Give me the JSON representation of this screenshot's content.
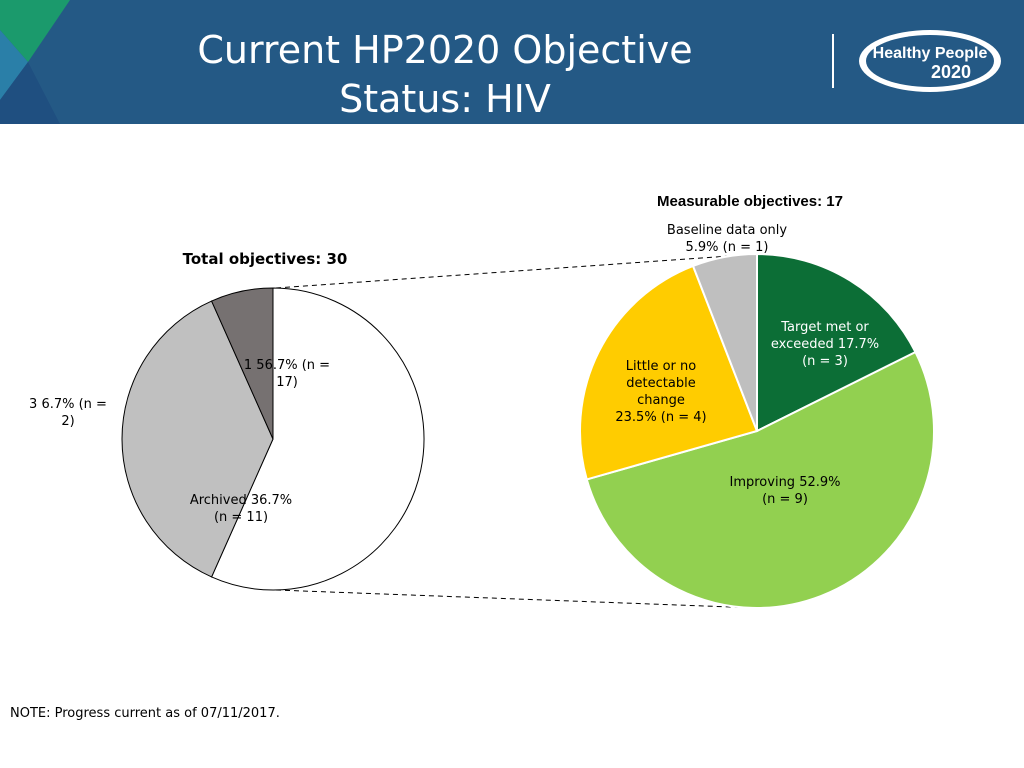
{
  "slide": {
    "title_line1": "Current HP2020 Objective",
    "title_line2": "Status: HIV",
    "note": "NOTE: Progress current as of 07/11/2017."
  },
  "logo": {
    "line1": "Healthy People",
    "line2": "2020"
  },
  "colors": {
    "header_bg": "#245985",
    "target_met": "#0C6E36",
    "improving": "#92D050",
    "little_change": "#FFCC00",
    "baseline_only": "#BFBFBF",
    "measurable_white": "#FFFFFF",
    "archived": "#C0C0C0",
    "developmental": "#767171"
  },
  "chart_data": [
    {
      "type": "pie",
      "title": "Total objectives: 30",
      "slices": [
        {
          "label_lines": [
            "1  56.7% (n =",
            "17)"
          ],
          "value": 17,
          "percent": 56.7,
          "color": "#FFFFFF"
        },
        {
          "label_lines": [
            "Archived 36.7%",
            "(n = 11)"
          ],
          "value": 11,
          "percent": 36.7,
          "color": "#C0C0C0"
        },
        {
          "label_lines": [
            "3 6.7% (n =",
            "2)"
          ],
          "value": 2,
          "percent": 6.7,
          "color": "#767171"
        }
      ]
    },
    {
      "type": "pie",
      "title": "Measurable objectives:  17",
      "slices": [
        {
          "label_lines": [
            "Target met or",
            "exceeded 17.7%",
            "(n = 3)"
          ],
          "value": 3,
          "percent": 17.7,
          "color": "#0C6E36",
          "label_color": "#FFFFFF"
        },
        {
          "label_lines": [
            "Improving 52.9%",
            "(n = 9)"
          ],
          "value": 9,
          "percent": 52.9,
          "color": "#92D050",
          "label_color": "#000000"
        },
        {
          "label_lines": [
            "Little or no",
            "detectable",
            "change",
            "23.5% (n = 4)"
          ],
          "value": 4,
          "percent": 23.5,
          "color": "#FFCC00",
          "label_color": "#000000"
        },
        {
          "label_lines": [
            "Baseline data only",
            "5.9% (n = 1)"
          ],
          "value": 1,
          "percent": 5.9,
          "color": "#BFBFBF",
          "label_color": "#000000"
        }
      ]
    }
  ]
}
